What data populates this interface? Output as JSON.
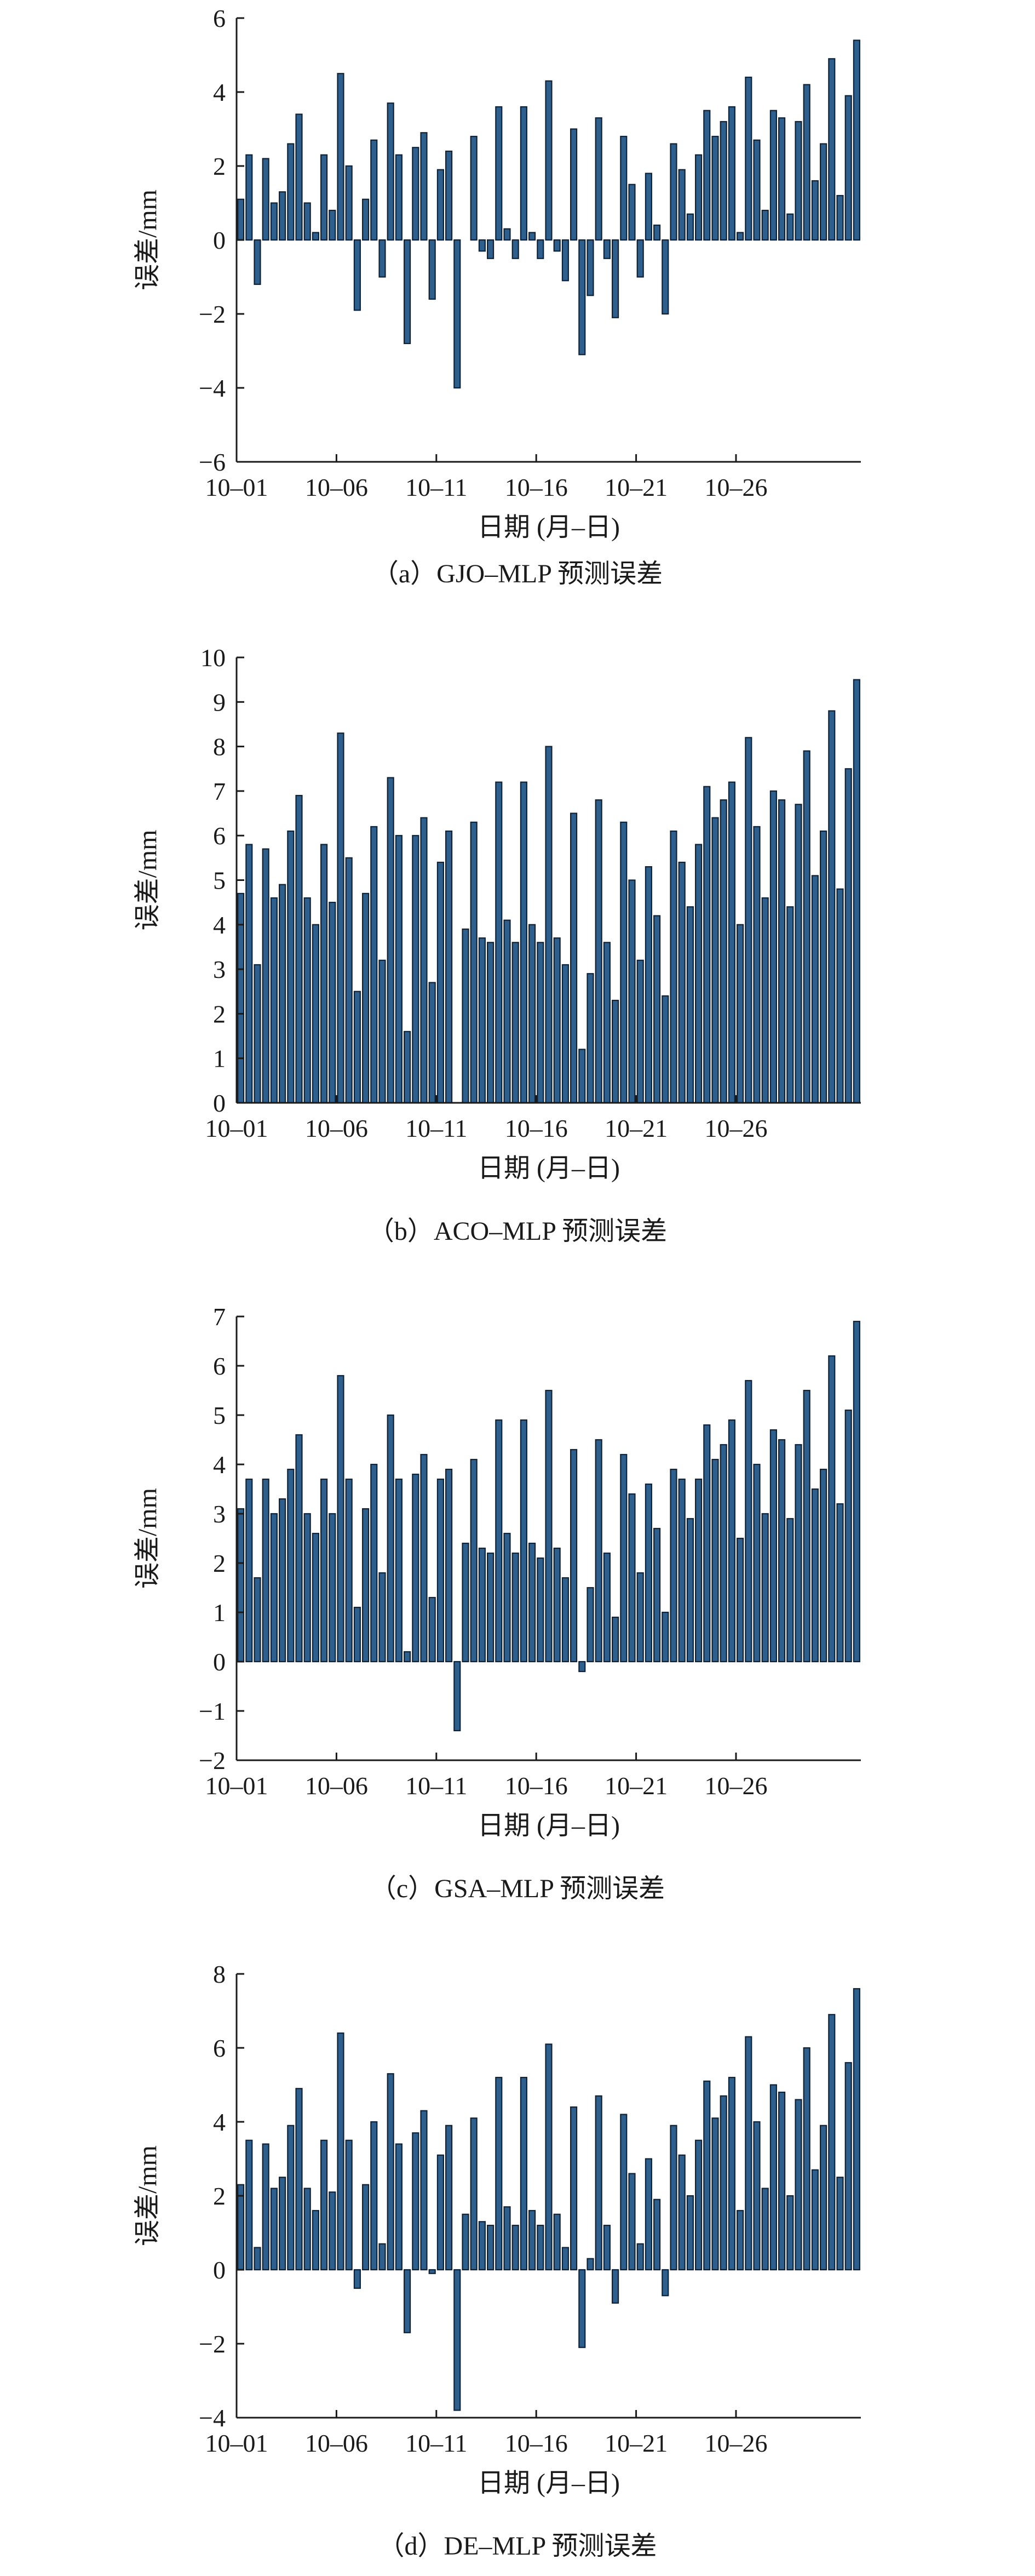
{
  "figure": {
    "colors": {
      "bar_fill": "#2f5f8c",
      "bar_edge": "#0f2236",
      "axis": "#1a1a1a",
      "background": "#ffffff"
    }
  },
  "chart_data": [
    {
      "id": "a",
      "type": "bar",
      "caption": "（a）GJO–MLP 预测误差",
      "xlabel": "日期 (月–日)",
      "ylabel": "误差/mm",
      "ylim": [
        -6,
        6
      ],
      "yticks": [
        -6,
        -4,
        -2,
        0,
        2,
        4,
        6
      ],
      "ytick_labels": [
        "−6",
        "−4",
        "−2",
        "0",
        "2",
        "4",
        "6"
      ],
      "xtick_labels": [
        "10–01",
        "10–06",
        "10–11",
        "10–16",
        "10–21",
        "10–26"
      ],
      "xtick_index": [
        0,
        12,
        24,
        36,
        48,
        60
      ],
      "grid": false,
      "values": [
        1.1,
        2.3,
        -1.2,
        2.2,
        1.0,
        1.3,
        2.6,
        3.4,
        1.0,
        0.2,
        2.3,
        0.8,
        4.5,
        2.0,
        -1.9,
        1.1,
        2.7,
        -1.0,
        3.7,
        2.3,
        -2.8,
        2.5,
        2.9,
        -1.6,
        1.9,
        2.4,
        -4.0,
        0,
        2.8,
        -0.3,
        -0.5,
        3.6,
        0.3,
        -0.5,
        3.6,
        0.2,
        -0.5,
        4.3,
        -0.3,
        -1.1,
        3.0,
        -3.1,
        -1.5,
        3.3,
        -0.5,
        -2.1,
        2.8,
        1.5,
        -1.0,
        1.8,
        0.4,
        -2.0,
        2.6,
        1.9,
        0.7,
        2.3,
        3.5,
        2.8,
        3.2,
        3.6,
        0.2,
        4.4,
        2.7,
        0.8,
        3.5,
        3.3,
        0.7,
        3.2,
        4.2,
        1.6,
        2.6,
        4.9,
        1.2,
        3.9,
        5.4
      ]
    },
    {
      "id": "b",
      "type": "bar",
      "caption": "（b）ACO–MLP 预测误差",
      "xlabel": "日期 (月–日)",
      "ylabel": "误差/mm",
      "ylim": [
        0,
        10
      ],
      "yticks": [
        0,
        1,
        2,
        3,
        4,
        5,
        6,
        7,
        8,
        9,
        10
      ],
      "ytick_labels": [
        "0",
        "1",
        "2",
        "3",
        "4",
        "5",
        "6",
        "7",
        "8",
        "9",
        "10"
      ],
      "xtick_labels": [
        "10–01",
        "10–06",
        "10–11",
        "10–16",
        "10–21",
        "10–26"
      ],
      "xtick_index": [
        0,
        12,
        24,
        36,
        48,
        60
      ],
      "grid": false,
      "values": [
        4.7,
        5.8,
        3.1,
        5.7,
        4.6,
        4.9,
        6.1,
        6.9,
        4.6,
        4.0,
        5.8,
        4.5,
        8.3,
        5.5,
        2.5,
        4.7,
        6.2,
        3.2,
        7.3,
        6.0,
        1.6,
        6.0,
        6.4,
        2.7,
        5.4,
        6.1,
        0,
        3.9,
        6.3,
        3.7,
        3.6,
        7.2,
        4.1,
        3.6,
        7.2,
        4.0,
        3.6,
        8.0,
        3.7,
        3.1,
        6.5,
        1.2,
        2.9,
        6.8,
        3.6,
        2.3,
        6.3,
        5.0,
        3.2,
        5.3,
        4.2,
        2.4,
        6.1,
        5.4,
        4.4,
        5.8,
        7.1,
        6.4,
        6.8,
        7.2,
        4.0,
        8.2,
        6.2,
        4.6,
        7.0,
        6.8,
        4.4,
        6.7,
        7.9,
        5.1,
        6.1,
        8.8,
        4.8,
        7.5,
        9.5
      ]
    },
    {
      "id": "c",
      "type": "bar",
      "caption": "（c）GSA–MLP 预测误差",
      "xlabel": "日期 (月–日)",
      "ylabel": "误差/mm",
      "ylim": [
        -2,
        7
      ],
      "yticks": [
        -2,
        -1,
        0,
        1,
        2,
        3,
        4,
        5,
        6,
        7
      ],
      "ytick_labels": [
        "−2",
        "−1",
        "0",
        "1",
        "2",
        "3",
        "4",
        "5",
        "6",
        "7"
      ],
      "xtick_labels": [
        "10–01",
        "10–06",
        "10–11",
        "10–16",
        "10–21",
        "10–26"
      ],
      "xtick_index": [
        0,
        12,
        24,
        36,
        48,
        60
      ],
      "grid": false,
      "values": [
        3.1,
        3.7,
        1.7,
        3.7,
        3.0,
        3.3,
        3.9,
        4.6,
        3.0,
        2.6,
        3.7,
        3.0,
        5.8,
        3.7,
        1.1,
        3.1,
        4.0,
        1.8,
        5.0,
        3.7,
        0.2,
        3.8,
        4.2,
        1.3,
        3.7,
        3.9,
        -1.4,
        2.4,
        4.1,
        2.3,
        2.2,
        4.9,
        2.6,
        2.2,
        4.9,
        2.4,
        2.1,
        5.5,
        2.3,
        1.7,
        4.3,
        -0.2,
        1.5,
        4.5,
        2.2,
        0.9,
        4.2,
        3.4,
        1.8,
        3.6,
        2.7,
        1.0,
        3.9,
        3.7,
        2.9,
        3.7,
        4.8,
        4.1,
        4.4,
        4.9,
        2.5,
        5.7,
        4.0,
        3.0,
        4.7,
        4.5,
        2.9,
        4.4,
        5.5,
        3.5,
        3.9,
        6.2,
        3.2,
        5.1,
        6.9
      ]
    },
    {
      "id": "d",
      "type": "bar",
      "caption": "（d）DE–MLP 预测误差",
      "xlabel": "日期 (月–日)",
      "ylabel": "误差/mm",
      "ylim": [
        -4,
        8
      ],
      "yticks": [
        -4,
        -2,
        0,
        2,
        4,
        6,
        8
      ],
      "ytick_labels": [
        "−4",
        "−2",
        "0",
        "2",
        "4",
        "6",
        "8"
      ],
      "xtick_labels": [
        "10–01",
        "10–06",
        "10–11",
        "10–16",
        "10–21",
        "10–26"
      ],
      "xtick_index": [
        0,
        12,
        24,
        36,
        48,
        60
      ],
      "grid": false,
      "values": [
        2.3,
        3.5,
        0.6,
        3.4,
        2.2,
        2.5,
        3.9,
        4.9,
        2.2,
        1.6,
        3.5,
        2.1,
        6.4,
        3.5,
        -0.5,
        2.3,
        4.0,
        0.7,
        5.3,
        3.4,
        -1.7,
        3.7,
        4.3,
        -0.1,
        3.1,
        3.9,
        -3.8,
        1.5,
        4.1,
        1.3,
        1.2,
        5.2,
        1.7,
        1.2,
        5.2,
        1.6,
        1.2,
        6.1,
        1.5,
        0.6,
        4.4,
        -2.1,
        0.3,
        4.7,
        1.2,
        -0.9,
        4.2,
        2.6,
        0.7,
        3.0,
        1.9,
        -0.7,
        3.9,
        3.1,
        2.0,
        3.5,
        5.1,
        4.1,
        4.7,
        5.2,
        1.6,
        6.3,
        4.0,
        2.2,
        5.0,
        4.8,
        2.0,
        4.6,
        6.0,
        2.7,
        3.9,
        6.9,
        2.5,
        5.6,
        7.6
      ]
    }
  ]
}
